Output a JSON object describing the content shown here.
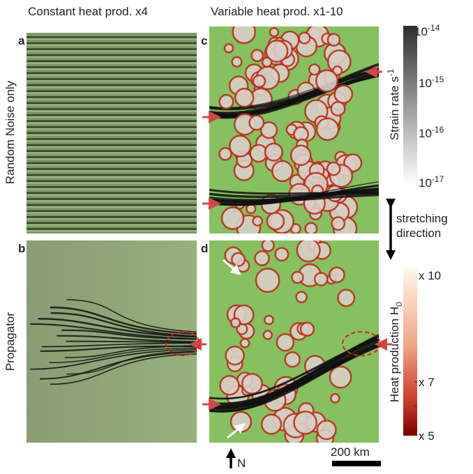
{
  "columns": [
    "Constant heat prod. x4",
    "Variable heat prod. x1-10"
  ],
  "rows": [
    "Random Noise only",
    "Propagator"
  ],
  "panels": [
    "a",
    "b",
    "c",
    "d"
  ],
  "strain_colorbar": {
    "label": "Strain rate s",
    "label_sup": "-1",
    "ticks": [
      {
        "base": "10",
        "exp": "-14"
      },
      {
        "base": "10",
        "exp": "-15"
      },
      {
        "base": "10",
        "exp": "-16"
      },
      {
        "base": "10",
        "exp": "-17"
      }
    ]
  },
  "stretching": [
    "stretching",
    "direction"
  ],
  "heat_colorbar": {
    "label": "Heat production",
    "symbol": "H",
    "symbol_sub": "0",
    "ticks": [
      "x 10",
      "x 7",
      "x 5"
    ]
  },
  "scale_bar": "200 km",
  "north": "N"
}
